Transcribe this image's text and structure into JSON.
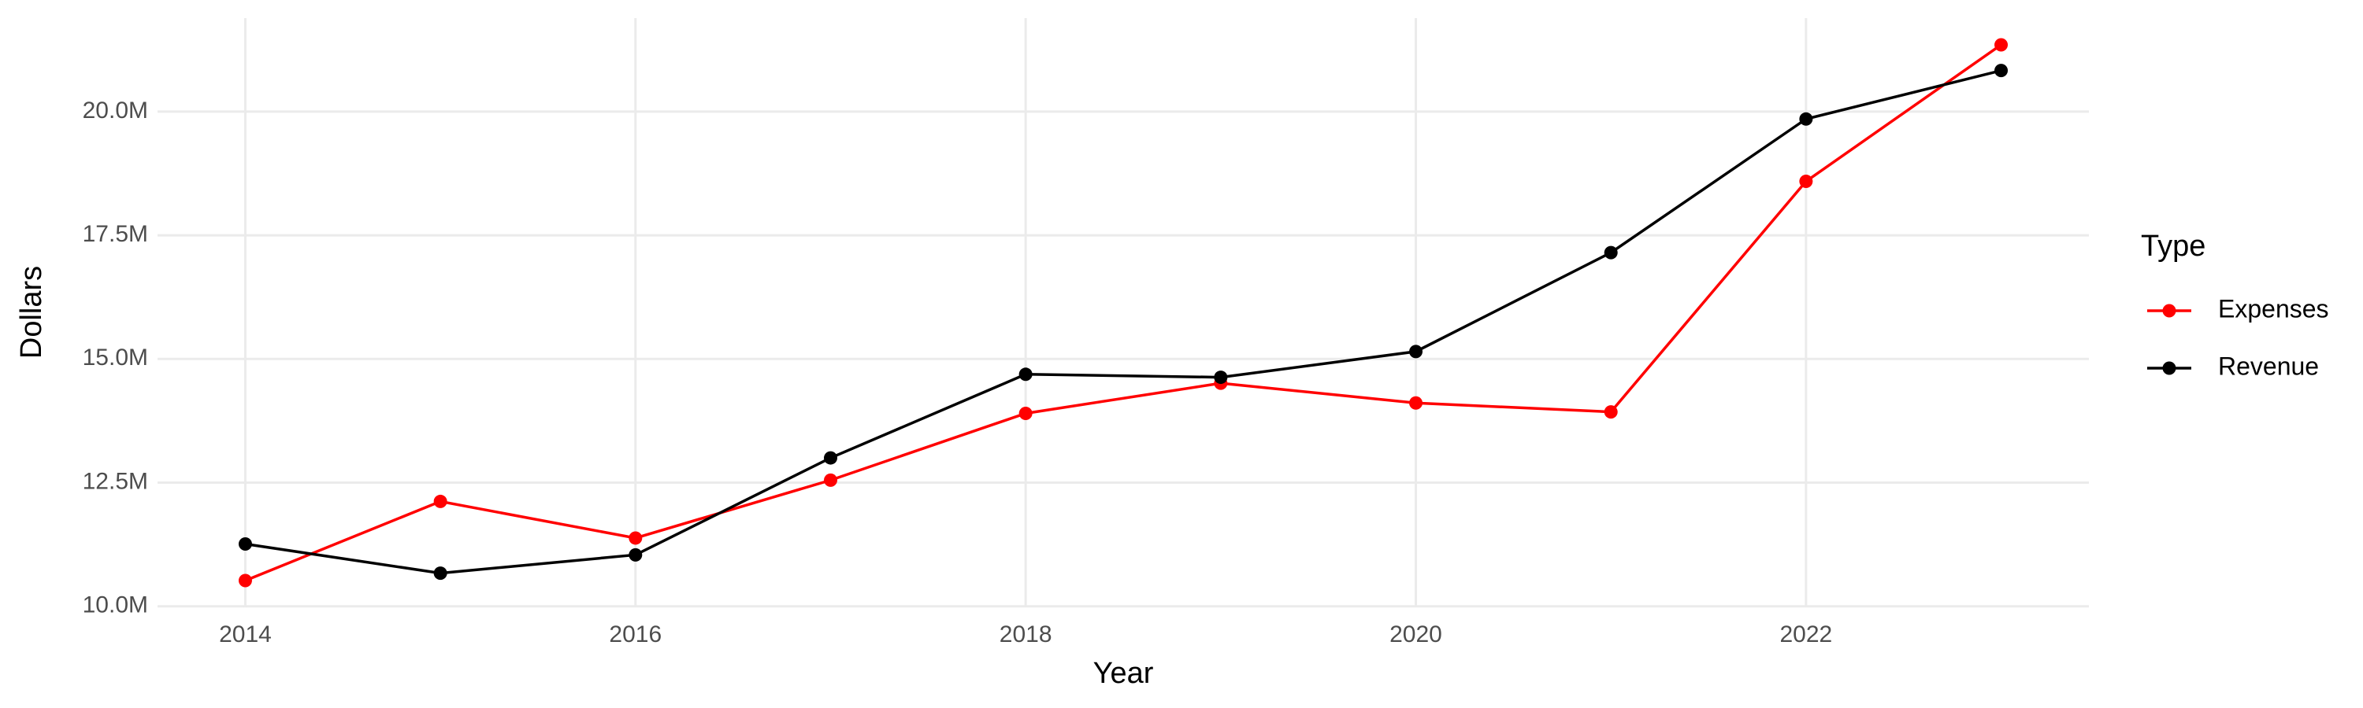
{
  "chart_data": {
    "type": "line",
    "x_label": "Year",
    "y_label": "Dollars",
    "legend_title": "Type",
    "x": [
      2014,
      2015,
      2016,
      2017,
      2018,
      2019,
      2020,
      2021,
      2022,
      2023
    ],
    "series": [
      {
        "name": "Expenses",
        "color": "#ff0000",
        "values": [
          10520000,
          12120000,
          11380000,
          12550000,
          13900000,
          14510000,
          14110000,
          13930000,
          18590000,
          21350000
        ]
      },
      {
        "name": "Revenue",
        "color": "#000000",
        "values": [
          11260000,
          10670000,
          11040000,
          13000000,
          14690000,
          14630000,
          15150000,
          17150000,
          19850000,
          20830000
        ]
      }
    ],
    "xlim": [
      2013.55,
      2023.45
    ],
    "xticks": [
      2014,
      2016,
      2018,
      2020,
      2022
    ],
    "ylim": [
      9980000,
      21890000
    ],
    "yticks": [
      {
        "value": 10000000,
        "label": "10.0M"
      },
      {
        "value": 12500000,
        "label": "12.5M"
      },
      {
        "value": 15000000,
        "label": "15.0M"
      },
      {
        "value": 17500000,
        "label": "17.5M"
      },
      {
        "value": 20000000,
        "label": "20.0M"
      }
    ],
    "grid": true,
    "legend": "right"
  }
}
